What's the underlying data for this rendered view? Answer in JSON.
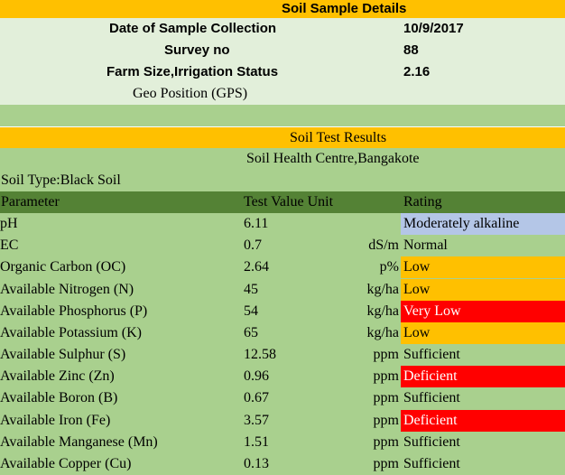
{
  "sample_details": {
    "title": "Soil Sample Details",
    "fields": [
      {
        "label": "Date of Sample Collection",
        "value": "10/9/2017"
      },
      {
        "label": "Survey no",
        "value": "88"
      },
      {
        "label": "Farm Size,Irrigation Status",
        "value": "2.16"
      }
    ],
    "geo_label": "Geo Position (GPS)"
  },
  "results": {
    "title": "Soil Test Results",
    "centre": "Soil Health Centre,Bangakote",
    "soil_type": "Soil Type:Black Soil",
    "headers": {
      "parameter": "Parameter",
      "value_unit": "Test Value Unit",
      "rating": "Rating"
    },
    "rows": [
      {
        "parameter": "pH",
        "value": "6.11",
        "unit": "",
        "rating": "Moderately alkaline",
        "rating_color": "#b4c6e7"
      },
      {
        "parameter": "EC",
        "value": "0.7",
        "unit": "dS/m",
        "rating": "Normal",
        "rating_color": "#a9d08e"
      },
      {
        "parameter": "Organic Carbon (OC)",
        "value": "2.64",
        "unit": "p%",
        "rating": "Low",
        "rating_color": "#ffc000"
      },
      {
        "parameter": "Available Nitrogen (N)",
        "value": "45",
        "unit": "kg/ha",
        "rating": "Low",
        "rating_color": "#ffc000"
      },
      {
        "parameter": "Available Phosphorus (P)",
        "value": "54",
        "unit": "kg/ha",
        "rating": "Very Low",
        "rating_color": "#ff0000"
      },
      {
        "parameter": "Available Potassium (K)",
        "value": "65",
        "unit": "kg/ha",
        "rating": "Low",
        "rating_color": "#ffc000"
      },
      {
        "parameter": "Available Sulphur (S)",
        "value": "12.58",
        "unit": "ppm",
        "rating": "Sufficient",
        "rating_color": "#a9d08e"
      },
      {
        "parameter": "Available Zinc (Zn)",
        "value": "0.96",
        "unit": "ppm",
        "rating": "Deficient",
        "rating_color": "#ff0000"
      },
      {
        "parameter": "Available Boron (B)",
        "value": "0.67",
        "unit": "ppm",
        "rating": "Sufficient",
        "rating_color": "#a9d08e"
      },
      {
        "parameter": "Available Iron (Fe)",
        "value": "3.57",
        "unit": "ppm",
        "rating": "Deficient",
        "rating_color": "#ff0000"
      },
      {
        "parameter": "Available Manganese (Mn)",
        "value": "1.51",
        "unit": "ppm",
        "rating": "Sufficient",
        "rating_color": "#a9d08e"
      },
      {
        "parameter": "Available Copper (Cu)",
        "value": "0.13",
        "unit": "ppm",
        "rating": "Sufficient",
        "rating_color": "#a9d08e"
      }
    ]
  }
}
